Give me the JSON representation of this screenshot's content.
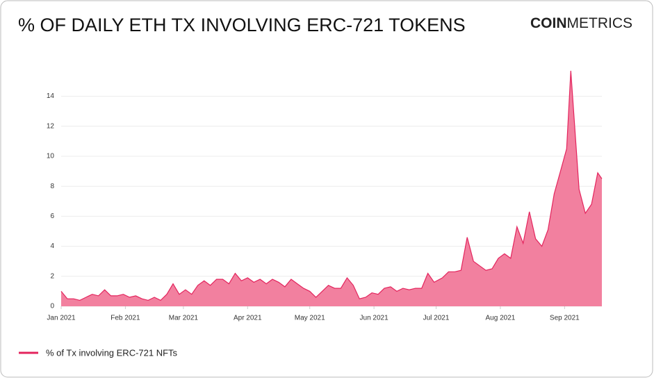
{
  "brand": {
    "strong": "COIN",
    "light": "METRICS"
  },
  "chart_data": {
    "type": "area",
    "title": "% OF DAILY ETH TX INVOLVING ERC-721 TOKENS",
    "x": [
      0,
      3,
      6,
      9,
      12,
      15,
      18,
      21,
      24,
      27,
      30,
      33,
      36,
      39,
      42,
      45,
      48,
      51,
      54,
      57,
      60,
      63,
      66,
      69,
      72,
      75,
      78,
      81,
      84,
      87,
      90,
      93,
      96,
      99,
      102,
      105,
      108,
      111,
      114,
      117,
      120,
      123,
      126,
      129,
      132,
      135,
      138,
      141,
      144,
      147,
      150,
      153,
      156,
      159,
      162,
      165,
      168,
      171,
      174,
      177,
      180,
      184,
      187,
      190,
      193,
      196,
      199,
      202,
      205,
      208,
      211,
      214,
      217,
      220,
      223,
      226,
      229,
      232,
      235,
      238,
      241,
      244,
      246,
      250,
      253,
      256,
      259,
      261
    ],
    "series": [
      {
        "name": "% of Tx involving ERC-721 NFTs",
        "color": "#e3245d",
        "fill": "#f2809f",
        "values": [
          1.0,
          0.5,
          0.5,
          0.4,
          0.6,
          0.8,
          0.7,
          1.1,
          0.7,
          0.7,
          0.8,
          0.6,
          0.7,
          0.5,
          0.4,
          0.6,
          0.4,
          0.8,
          1.5,
          0.8,
          1.1,
          0.8,
          1.4,
          1.7,
          1.4,
          1.8,
          1.8,
          1.5,
          2.2,
          1.7,
          1.9,
          1.6,
          1.8,
          1.5,
          1.8,
          1.6,
          1.3,
          1.8,
          1.5,
          1.2,
          1.0,
          0.6,
          1.0,
          1.4,
          1.2,
          1.2,
          1.9,
          1.4,
          0.5,
          0.6,
          0.9,
          0.8,
          1.2,
          1.3,
          1.0,
          1.2,
          1.1,
          1.2,
          1.2,
          2.2,
          1.6,
          1.9,
          2.3,
          2.3,
          2.4,
          4.6,
          3.0,
          2.7,
          2.4,
          2.5,
          3.2,
          3.5,
          3.2,
          5.3,
          4.2,
          6.3,
          4.5,
          4.0,
          5.1,
          7.5,
          9.0,
          10.5,
          15.7,
          7.8,
          6.2,
          6.8,
          8.9,
          8.5
        ]
      }
    ],
    "xlim": [
      0,
      261
    ],
    "xticks": [
      {
        "value": 0,
        "label": "Jan 2021"
      },
      {
        "value": 31,
        "label": "Feb 2021"
      },
      {
        "value": 59,
        "label": "Mar 2021"
      },
      {
        "value": 90,
        "label": "Apr 2021"
      },
      {
        "value": 120,
        "label": "May 2021"
      },
      {
        "value": 151,
        "label": "Jun 2021"
      },
      {
        "value": 181,
        "label": "Jul 2021"
      },
      {
        "value": 212,
        "label": "Aug 2021"
      },
      {
        "value": 243,
        "label": "Sep 2021"
      }
    ],
    "ylim": [
      0,
      15
    ],
    "yticks": [
      0,
      2,
      4,
      6,
      8,
      10,
      12,
      14
    ],
    "grid": true,
    "legend": "bottom-left"
  }
}
